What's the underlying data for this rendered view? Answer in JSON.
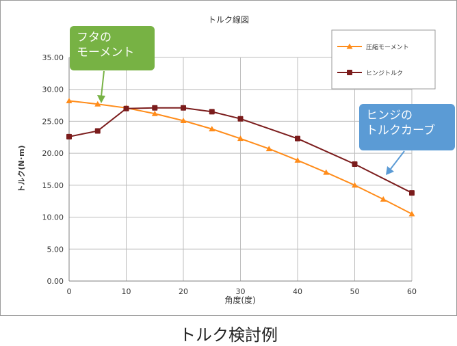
{
  "chart_data": {
    "type": "line",
    "title": "トルク線図",
    "xlabel": "角度(度)",
    "ylabel": "トルク(N･m)",
    "xlim": [
      0,
      60
    ],
    "ylim": [
      0,
      35
    ],
    "x_ticks": [
      "0",
      "10",
      "20",
      "30",
      "40",
      "50",
      "60"
    ],
    "y_ticks": [
      "0.00",
      "5.00",
      "10.00",
      "15.00",
      "20.00",
      "25.00",
      "30.00",
      "35.00"
    ],
    "grid": true,
    "legend_position": "top-right",
    "series": [
      {
        "name": "圧縮モーメント",
        "color": "#ff8c1a",
        "marker": "triangle",
        "x": [
          0,
          5,
          10,
          15,
          20,
          25,
          30,
          35,
          40,
          45,
          50,
          55,
          60
        ],
        "values": [
          28.2,
          27.7,
          27.1,
          26.2,
          25.1,
          23.8,
          22.3,
          20.7,
          18.9,
          17.0,
          15.0,
          12.8,
          10.5
        ]
      },
      {
        "name": "ヒンジトルク",
        "color": "#7b1c1c",
        "marker": "square",
        "x": [
          0,
          5,
          10,
          15,
          20,
          25,
          30,
          40,
          50,
          60
        ],
        "values": [
          22.6,
          23.5,
          27.0,
          27.1,
          27.1,
          26.5,
          25.4,
          22.3,
          18.3,
          13.8
        ]
      }
    ]
  },
  "callouts": {
    "lid_moment": [
      "フタの",
      "モーメント"
    ],
    "hinge_curve": [
      "ヒンジの",
      "トルクカーブ"
    ],
    "lid_color": "#77b244",
    "hinge_color": "#5b9bd5"
  },
  "caption": "トルク検討例"
}
